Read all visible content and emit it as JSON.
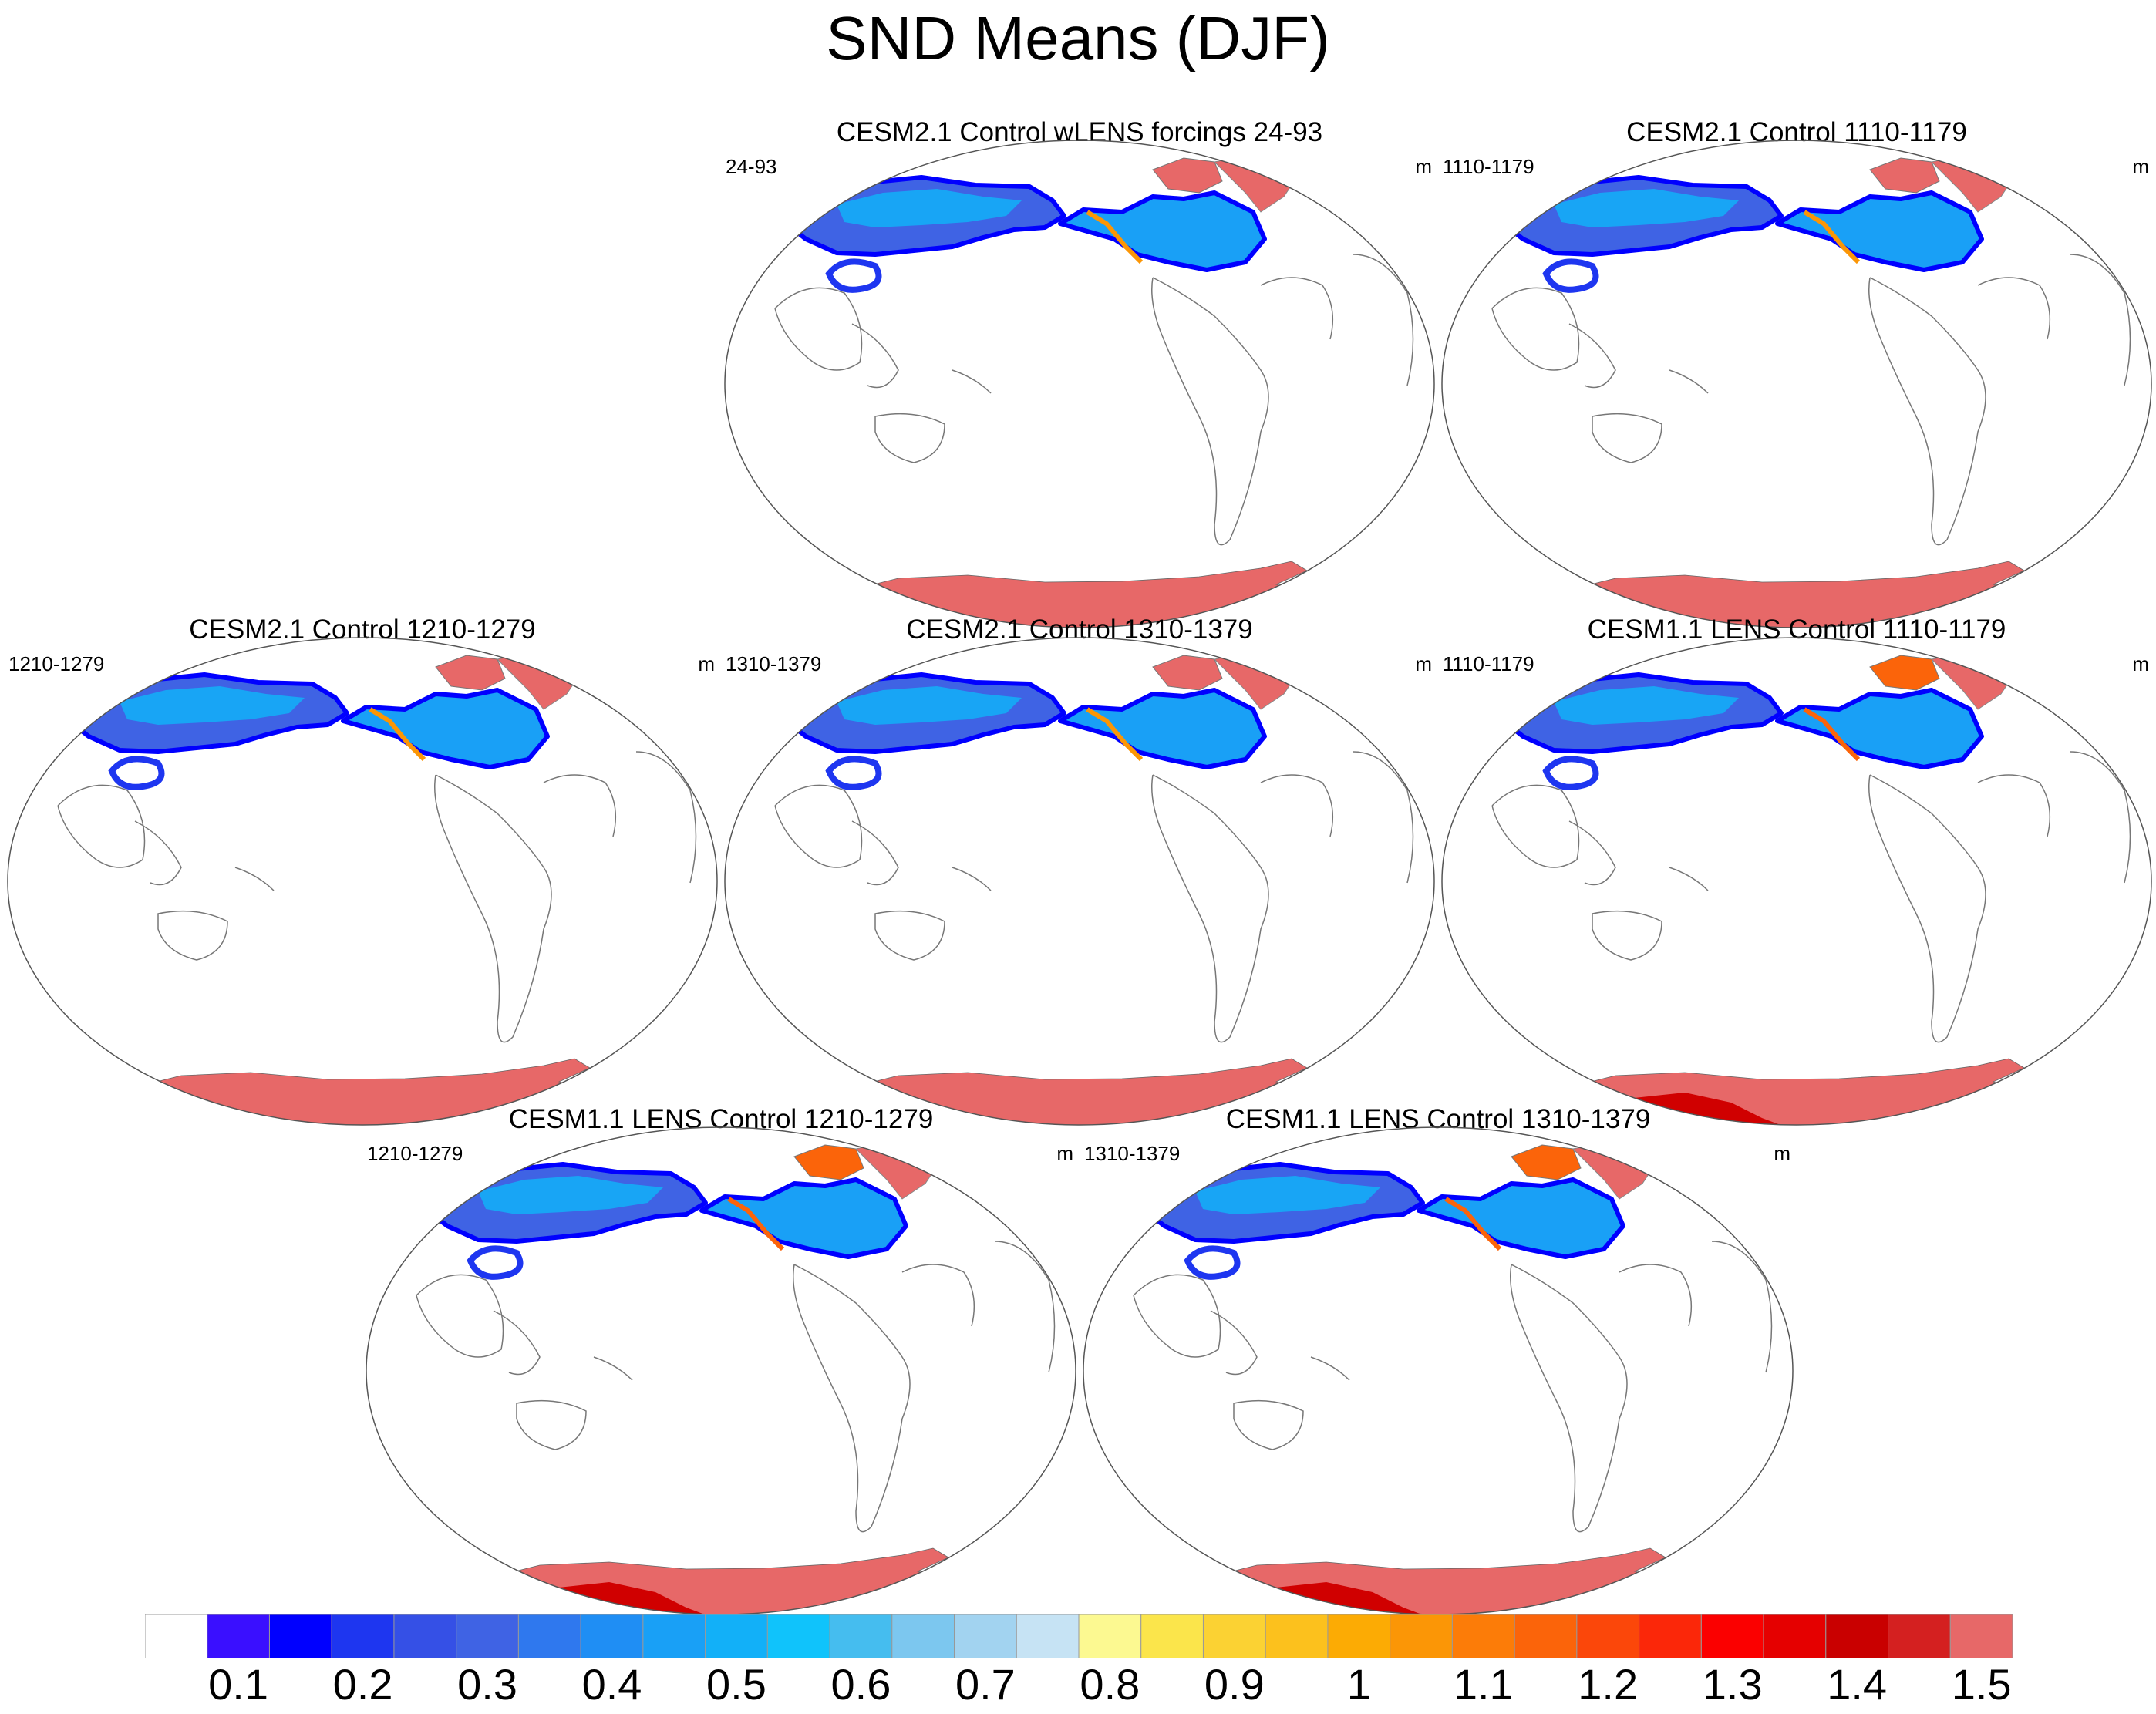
{
  "title": "SND Means (DJF)",
  "panels": [
    {
      "title": "CESM2.1 Control wLENS forcings 24-93",
      "left_label": "24-93",
      "right_label": "m",
      "dataset": "cesm2"
    },
    {
      "title": "CESM2.1 Control 1110-1179",
      "left_label": "1110-1179",
      "right_label": "m",
      "dataset": "cesm2"
    },
    {
      "title": "CESM2.1 Control 1210-1279",
      "left_label": "1210-1279",
      "right_label": "m",
      "dataset": "cesm2"
    },
    {
      "title": "CESM2.1 Control 1310-1379",
      "left_label": "1310-1379",
      "right_label": "m",
      "dataset": "cesm2"
    },
    {
      "title": "CESM1.1 LENS Control 1110-1179",
      "left_label": "1110-1179",
      "right_label": "m",
      "dataset": "cesm1"
    },
    {
      "title": "CESM1.1 LENS Control 1210-1279",
      "left_label": "1210-1279",
      "right_label": "m",
      "dataset": "cesm1"
    },
    {
      "title": "CESM1.1 LENS Control 1310-1379",
      "left_label": "1310-1379",
      "right_label": "m",
      "dataset": "cesm1"
    }
  ],
  "colorbar": {
    "colors": [
      "#ffffff",
      "#3a0fff",
      "#0000ff",
      "#1e36f0",
      "#3550e6",
      "#3f63e4",
      "#2f78ee",
      "#1f8ef4",
      "#19a0f6",
      "#12b0f8",
      "#10c3fb",
      "#45bdef",
      "#7cc7ef",
      "#a2d3f0",
      "#c6e3f4",
      "#fcf991",
      "#fbe54b",
      "#fbd233",
      "#fcc11d",
      "#fcab04",
      "#fb9606",
      "#fc7c08",
      "#fb640a",
      "#fb470a",
      "#fb2709",
      "#fb0000",
      "#e50000",
      "#c90000",
      "#d42020",
      "#e76868"
    ],
    "tick_labels": [
      "0.1",
      "0.2",
      "0.3",
      "0.4",
      "0.5",
      "0.6",
      "0.7",
      "0.8",
      "0.9",
      "1",
      "1.1",
      "1.2",
      "1.3",
      "1.4",
      "1.5"
    ],
    "unit": "m"
  },
  "legend": {
    "antarctic_cap_color": "#e76868",
    "deep_cap_color": "#d00000"
  }
}
